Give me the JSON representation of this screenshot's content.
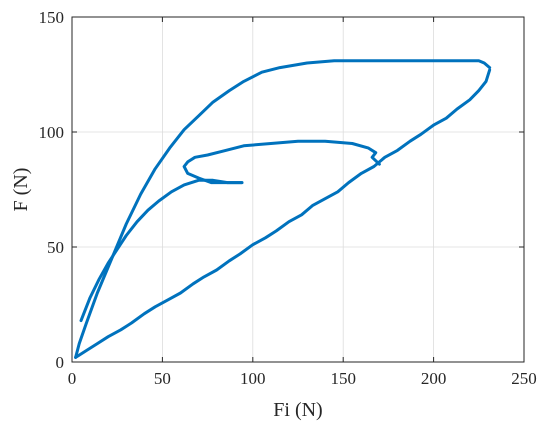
{
  "chart_data": {
    "type": "line",
    "title": "",
    "xlabel": "Fi (N)",
    "ylabel": "F (N)",
    "xlim": [
      0,
      250
    ],
    "ylim": [
      0,
      150
    ],
    "xticks": [
      0,
      50,
      100,
      150,
      200,
      250
    ],
    "yticks": [
      0,
      50,
      100,
      150
    ],
    "xtick_labels": [
      "0",
      "50",
      "100",
      "150",
      "200",
      "250"
    ],
    "ytick_labels": [
      "0",
      "50",
      "100",
      "150"
    ],
    "grid": true,
    "legend": "none",
    "series": [
      {
        "color": "#0072BD",
        "segments": [
          {
            "x": [
              2,
              4,
              8,
              14,
              20,
              27,
              33,
              40,
              46,
              53,
              60,
              67,
              73,
              80,
              87,
              93,
              100,
              107,
              113,
              120,
              127,
              133,
              140,
              147,
              153,
              160,
              167,
              173,
              180,
              187,
              193,
              200,
              207,
              213,
              220,
              225,
              229,
              231
            ],
            "y": [
              2,
              3,
              5,
              8,
              11,
              14,
              17,
              21,
              24,
              27,
              30,
              34,
              37,
              40,
              44,
              47,
              51,
              54,
              57,
              61,
              64,
              68,
              71,
              74,
              78,
              82,
              85,
              89,
              92,
              96,
              99,
              103,
              106,
              110,
              114,
              118,
              122,
              127
            ]
          },
          {
            "x": [
              231,
              228,
              225,
              220,
              210,
              200,
              185,
              170,
              160,
              145,
              130,
              115,
              105,
              95,
              87,
              78,
              70,
              62,
              54,
              46,
              38,
              30,
              22,
              14,
              8,
              4,
              2
            ],
            "y": [
              128,
              130,
              131,
              131,
              131,
              131,
              131,
              131,
              131,
              131,
              130,
              128,
              126,
              122,
              118,
              113,
              107,
              101,
              93,
              84,
              73,
              60,
              45,
              30,
              17,
              8,
              2
            ]
          },
          {
            "x": [
              5,
              10,
              15,
              20,
              25,
              30,
              36,
              42,
              48,
              55,
              62,
              70,
              78,
              86,
              94
            ],
            "y": [
              18,
              28,
              36,
              43,
              49,
              55,
              61,
              66,
              70,
              74,
              77,
              79,
              79,
              78,
              78
            ]
          },
          {
            "x": [
              94,
              85,
              77,
              70,
              64,
              62,
              64,
              68,
              75,
              85,
              95,
              110,
              125,
              140,
              155,
              164,
              168,
              166,
              170
            ],
            "y": [
              78,
              78,
              78,
              80,
              82,
              85,
              87,
              89,
              90,
              92,
              94,
              95,
              96,
              96,
              95,
              93,
              91,
              89,
              86
            ]
          }
        ]
      }
    ]
  }
}
